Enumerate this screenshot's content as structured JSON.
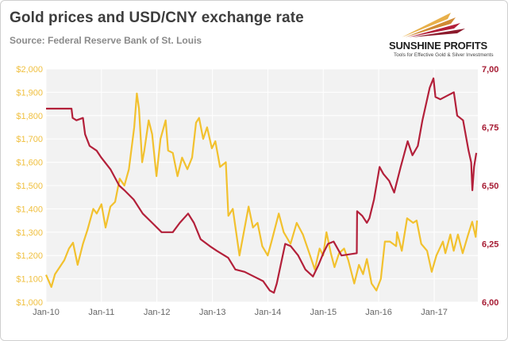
{
  "header": {
    "title": "Gold prices and USD/CNY exchange rate",
    "subtitle": "Source: Federal Reserve Bank of St. Louis"
  },
  "brand": {
    "name": "SUNSHINE PROFITS",
    "tagline": "Tools for Effective Gold & Silver Investments",
    "icon": "sunshine-profits-logo-icon"
  },
  "colors": {
    "gold": "#f2c12e",
    "usdcny": "#b3203a",
    "left_axis_text": "#f0c040",
    "right_axis_text": "#a61b33",
    "plot_bg": "#f2f2f2",
    "grid": "#ffffff"
  },
  "chart_data": {
    "type": "line",
    "title": "Gold prices and USD/CNY exchange rate",
    "grid": true,
    "legend": "none",
    "x_axis": {
      "type": "date",
      "range": [
        "2010-01-01",
        "2017-10-15"
      ],
      "ticks": [
        {
          "date": "2010-01-01",
          "label": "Jan-10"
        },
        {
          "date": "2011-01-01",
          "label": "Jan-11"
        },
        {
          "date": "2012-01-01",
          "label": "Jan-12"
        },
        {
          "date": "2013-01-01",
          "label": "Jan-13"
        },
        {
          "date": "2014-01-01",
          "label": "Jan-14"
        },
        {
          "date": "2015-01-01",
          "label": "Jan-15"
        },
        {
          "date": "2016-01-01",
          "label": "Jan-16"
        },
        {
          "date": "2017-01-01",
          "label": "Jan-17"
        }
      ]
    },
    "y_left": {
      "range": [
        1000,
        2000
      ],
      "ticks": [
        1000,
        1100,
        1200,
        1300,
        1400,
        1500,
        1600,
        1700,
        1800,
        1900,
        2000
      ],
      "tick_labels": [
        "$1,000",
        "$1,100",
        "$1,200",
        "$1,300",
        "$1,400",
        "$1,500",
        "$1,600",
        "$1,700",
        "$1,800",
        "$1,900",
        "$2,000"
      ]
    },
    "y_right": {
      "range": [
        6.0,
        7.0
      ],
      "ticks": [
        6.0,
        6.25,
        6.5,
        6.75,
        7.0
      ],
      "tick_labels": [
        "6,00",
        "6,25",
        "6,50",
        "6,75",
        "7,00"
      ]
    },
    "series": [
      {
        "axis": "left",
        "color": "#f2c12e",
        "points": [
          [
            "2010-01-01",
            1117
          ],
          [
            "2010-02-05",
            1065
          ],
          [
            "2010-03-01",
            1120
          ],
          [
            "2010-04-01",
            1150
          ],
          [
            "2010-05-01",
            1180
          ],
          [
            "2010-06-01",
            1230
          ],
          [
            "2010-06-28",
            1255
          ],
          [
            "2010-07-28",
            1160
          ],
          [
            "2010-09-01",
            1250
          ],
          [
            "2010-10-01",
            1310
          ],
          [
            "2010-11-08",
            1400
          ],
          [
            "2010-12-01",
            1380
          ],
          [
            "2011-01-01",
            1420
          ],
          [
            "2011-01-28",
            1320
          ],
          [
            "2011-03-01",
            1410
          ],
          [
            "2011-04-01",
            1430
          ],
          [
            "2011-05-01",
            1530
          ],
          [
            "2011-06-01",
            1500
          ],
          [
            "2011-07-01",
            1570
          ],
          [
            "2011-08-05",
            1750
          ],
          [
            "2011-08-22",
            1895
          ],
          [
            "2011-09-05",
            1830
          ],
          [
            "2011-09-26",
            1600
          ],
          [
            "2011-10-10",
            1650
          ],
          [
            "2011-11-08",
            1780
          ],
          [
            "2011-12-01",
            1720
          ],
          [
            "2011-12-29",
            1540
          ],
          [
            "2012-01-25",
            1700
          ],
          [
            "2012-02-28",
            1780
          ],
          [
            "2012-03-15",
            1650
          ],
          [
            "2012-04-15",
            1640
          ],
          [
            "2012-05-16",
            1540
          ],
          [
            "2012-06-15",
            1620
          ],
          [
            "2012-07-20",
            1570
          ],
          [
            "2012-08-20",
            1620
          ],
          [
            "2012-09-15",
            1770
          ],
          [
            "2012-10-05",
            1790
          ],
          [
            "2012-11-01",
            1700
          ],
          [
            "2012-11-27",
            1750
          ],
          [
            "2012-12-28",
            1660
          ],
          [
            "2013-01-20",
            1690
          ],
          [
            "2013-02-20",
            1580
          ],
          [
            "2013-03-30",
            1600
          ],
          [
            "2013-04-16",
            1370
          ],
          [
            "2013-05-15",
            1400
          ],
          [
            "2013-06-28",
            1200
          ],
          [
            "2013-08-27",
            1410
          ],
          [
            "2013-09-25",
            1320
          ],
          [
            "2013-10-25",
            1340
          ],
          [
            "2013-11-25",
            1240
          ],
          [
            "2013-12-31",
            1200
          ],
          [
            "2014-01-25",
            1260
          ],
          [
            "2014-03-14",
            1380
          ],
          [
            "2014-04-15",
            1300
          ],
          [
            "2014-05-30",
            1250
          ],
          [
            "2014-07-10",
            1340
          ],
          [
            "2014-08-20",
            1290
          ],
          [
            "2014-10-01",
            1210
          ],
          [
            "2014-11-06",
            1140
          ],
          [
            "2014-12-08",
            1230
          ],
          [
            "2014-12-31",
            1200
          ],
          [
            "2015-01-22",
            1300
          ],
          [
            "2015-02-20",
            1210
          ],
          [
            "2015-03-16",
            1150
          ],
          [
            "2015-04-15",
            1210
          ],
          [
            "2015-05-18",
            1230
          ],
          [
            "2015-06-15",
            1180
          ],
          [
            "2015-07-24",
            1080
          ],
          [
            "2015-08-24",
            1160
          ],
          [
            "2015-09-20",
            1120
          ],
          [
            "2015-10-15",
            1185
          ],
          [
            "2015-11-15",
            1080
          ],
          [
            "2015-12-17",
            1050
          ],
          [
            "2016-01-15",
            1100
          ],
          [
            "2016-02-11",
            1260
          ],
          [
            "2016-03-15",
            1260
          ],
          [
            "2016-04-25",
            1240
          ],
          [
            "2016-05-01",
            1300
          ],
          [
            "2016-06-01",
            1220
          ],
          [
            "2016-07-06",
            1360
          ],
          [
            "2016-08-15",
            1340
          ],
          [
            "2016-09-07",
            1350
          ],
          [
            "2016-10-07",
            1250
          ],
          [
            "2016-11-15",
            1220
          ],
          [
            "2016-12-15",
            1130
          ],
          [
            "2017-01-15",
            1200
          ],
          [
            "2017-02-27",
            1260
          ],
          [
            "2017-03-15",
            1210
          ],
          [
            "2017-04-17",
            1290
          ],
          [
            "2017-05-09",
            1220
          ],
          [
            "2017-06-06",
            1290
          ],
          [
            "2017-07-07",
            1210
          ],
          [
            "2017-08-10",
            1285
          ],
          [
            "2017-09-08",
            1345
          ],
          [
            "2017-10-01",
            1280
          ],
          [
            "2017-10-10",
            1350
          ]
        ]
      },
      {
        "axis": "right",
        "color": "#b3203a",
        "points": [
          [
            "2010-01-01",
            6.83
          ],
          [
            "2010-06-18",
            6.83
          ],
          [
            "2010-06-25",
            6.79
          ],
          [
            "2010-07-20",
            6.78
          ],
          [
            "2010-09-01",
            6.79
          ],
          [
            "2010-09-15",
            6.72
          ],
          [
            "2010-10-15",
            6.67
          ],
          [
            "2010-11-30",
            6.65
          ],
          [
            "2010-12-31",
            6.62
          ],
          [
            "2011-03-01",
            6.57
          ],
          [
            "2011-04-28",
            6.5
          ],
          [
            "2011-06-01",
            6.48
          ],
          [
            "2011-08-01",
            6.44
          ],
          [
            "2011-09-30",
            6.38
          ],
          [
            "2011-12-01",
            6.34
          ],
          [
            "2012-02-01",
            6.3
          ],
          [
            "2012-04-15",
            6.3
          ],
          [
            "2012-05-31",
            6.34
          ],
          [
            "2012-07-25",
            6.38
          ],
          [
            "2012-09-01",
            6.34
          ],
          [
            "2012-10-15",
            6.27
          ],
          [
            "2012-12-15",
            6.24
          ],
          [
            "2013-01-30",
            6.22
          ],
          [
            "2013-04-15",
            6.19
          ],
          [
            "2013-06-01",
            6.14
          ],
          [
            "2013-08-01",
            6.13
          ],
          [
            "2013-10-01",
            6.11
          ],
          [
            "2013-12-01",
            6.09
          ],
          [
            "2014-01-13",
            6.05
          ],
          [
            "2014-02-10",
            6.04
          ],
          [
            "2014-03-01",
            6.08
          ],
          [
            "2014-04-25",
            6.25
          ],
          [
            "2014-06-01",
            6.24
          ],
          [
            "2014-07-20",
            6.2
          ],
          [
            "2014-09-05",
            6.14
          ],
          [
            "2014-10-25",
            6.11
          ],
          [
            "2014-12-01",
            6.16
          ],
          [
            "2015-01-01",
            6.21
          ],
          [
            "2015-02-01",
            6.25
          ],
          [
            "2015-03-10",
            6.26
          ],
          [
            "2015-05-01",
            6.2
          ],
          [
            "2015-08-10",
            6.21
          ],
          [
            "2015-08-12",
            6.39
          ],
          [
            "2015-09-15",
            6.37
          ],
          [
            "2015-10-15",
            6.34
          ],
          [
            "2015-11-01",
            6.36
          ],
          [
            "2015-12-01",
            6.44
          ],
          [
            "2016-01-07",
            6.58
          ],
          [
            "2016-02-01",
            6.55
          ],
          [
            "2016-03-10",
            6.52
          ],
          [
            "2016-04-12",
            6.47
          ],
          [
            "2016-05-25",
            6.58
          ],
          [
            "2016-07-10",
            6.69
          ],
          [
            "2016-08-10",
            6.63
          ],
          [
            "2016-09-15",
            6.67
          ],
          [
            "2016-10-15",
            6.78
          ],
          [
            "2016-12-02",
            6.92
          ],
          [
            "2016-12-27",
            6.96
          ],
          [
            "2017-01-09",
            6.88
          ],
          [
            "2017-02-10",
            6.87
          ],
          [
            "2017-04-10",
            6.89
          ],
          [
            "2017-05-10",
            6.9
          ],
          [
            "2017-06-01",
            6.8
          ],
          [
            "2017-07-10",
            6.78
          ],
          [
            "2017-08-15",
            6.65
          ],
          [
            "2017-09-01",
            6.6
          ],
          [
            "2017-09-09",
            6.48
          ],
          [
            "2017-09-20",
            6.58
          ],
          [
            "2017-10-05",
            6.64
          ]
        ]
      }
    ]
  }
}
